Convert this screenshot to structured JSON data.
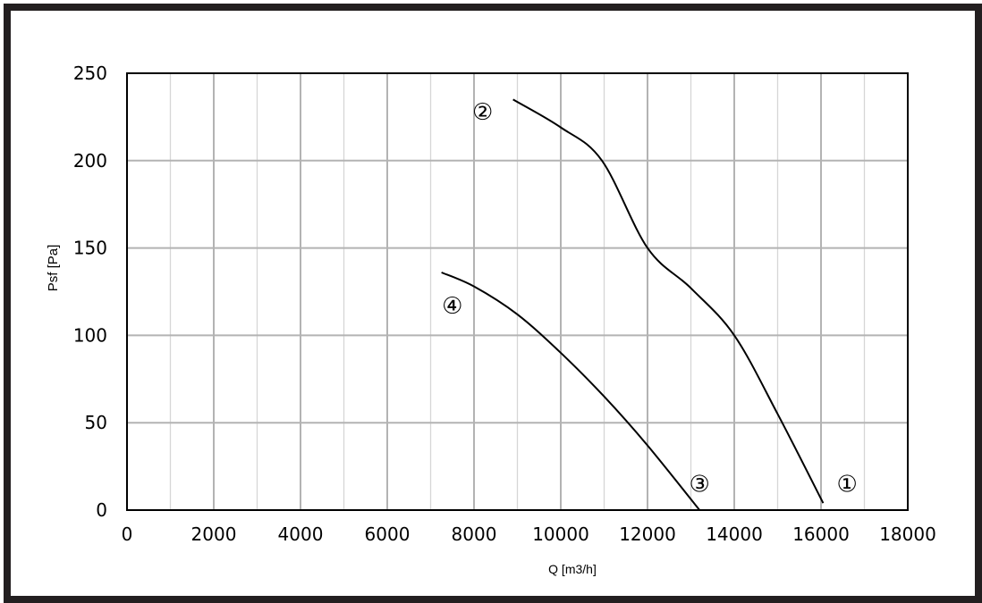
{
  "chart_data": {
    "type": "line",
    "xlabel": "Q [m3/h]",
    "ylabel": "Psf [Pa]",
    "xlim": [
      0,
      18000
    ],
    "ylim": [
      0,
      250
    ],
    "x_ticks": [
      0,
      2000,
      4000,
      6000,
      8000,
      10000,
      12000,
      14000,
      16000,
      18000
    ],
    "y_ticks": [
      0,
      50,
      100,
      150,
      200,
      250
    ],
    "grid": true,
    "minor_x_grid_step": 1000,
    "line_color": "#000000",
    "grid_color": "#b3b3b3",
    "series": [
      {
        "points": [
          [
            8900,
            235
          ],
          [
            10000,
            219
          ],
          [
            10950,
            200
          ],
          [
            12000,
            150
          ],
          [
            13000,
            127
          ],
          [
            14000,
            100
          ],
          [
            15000,
            55
          ],
          [
            16050,
            4
          ]
        ]
      },
      {
        "points": [
          [
            7250,
            136
          ],
          [
            8000,
            128
          ],
          [
            9000,
            112
          ],
          [
            10000,
            90
          ],
          [
            11000,
            65
          ],
          [
            12000,
            37
          ],
          [
            13200,
            0
          ]
        ]
      }
    ],
    "annotations": [
      {
        "text": "①",
        "x": 16600,
        "y": 15
      },
      {
        "text": "②",
        "x": 8200,
        "y": 228
      },
      {
        "text": "③",
        "x": 13200,
        "y": 15
      },
      {
        "text": "④",
        "x": 7500,
        "y": 117
      }
    ]
  }
}
